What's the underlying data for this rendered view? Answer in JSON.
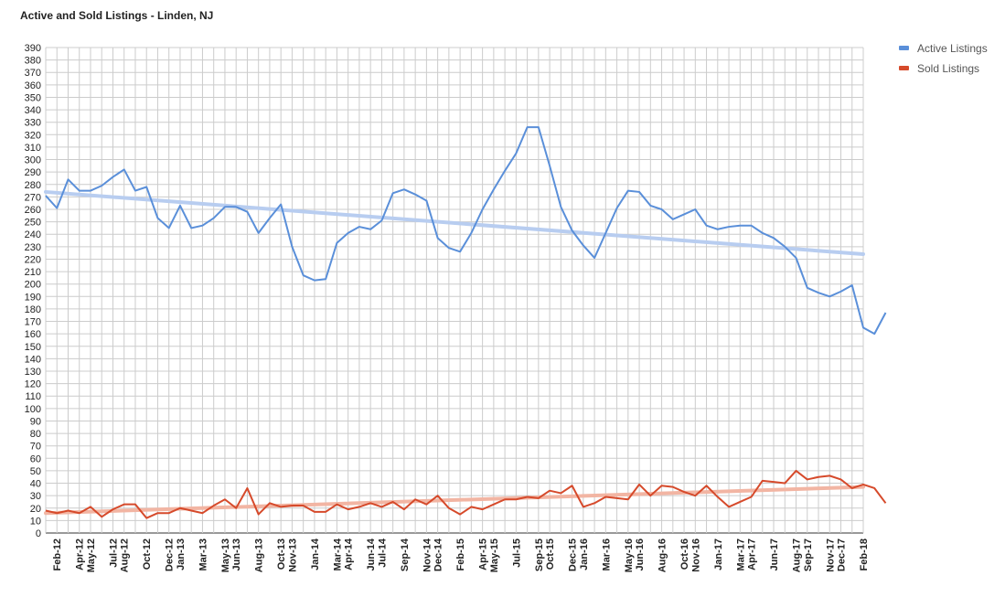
{
  "chart_data": {
    "type": "line",
    "title": "Active and Sold Listings - Linden, NJ",
    "xlabel": "",
    "ylabel": "",
    "ylim": [
      0,
      390
    ],
    "ytick_step": 10,
    "x_start": "Jan-12",
    "x_end": "Feb-18",
    "x_tick_labels": [
      "Feb-12",
      "Apr-12",
      "May-12",
      "Jul-12",
      "Aug-12",
      "Oct-12",
      "Dec-12",
      "Jan-13",
      "Mar-13",
      "May-13",
      "Jun-13",
      "Aug-13",
      "Oct-13",
      "Nov-13",
      "Jan-14",
      "Mar-14",
      "Apr-14",
      "Jun-14",
      "Jul-14",
      "Sep-14",
      "Nov-14",
      "Dec-14",
      "Feb-15",
      "Apr-15",
      "May-15",
      "Jul-15",
      "Sep-15",
      "Oct-15",
      "Dec-15",
      "Jan-16",
      "Mar-16",
      "May-16",
      "Jun-16",
      "Aug-16",
      "Oct-16",
      "Nov-16",
      "Jan-17",
      "Mar-17",
      "Apr-17",
      "Jun-17",
      "Aug-17",
      "Sep-17",
      "Nov-17",
      "Dec-17",
      "Feb-18"
    ],
    "grid": true,
    "legend_position": "right",
    "series": [
      {
        "name": "Active Listings",
        "color": "#5a8fd9",
        "trend_color": "#b8cdf0",
        "trendline": [
          274,
          224
        ],
        "values": [
          271,
          261,
          284,
          275,
          275,
          279,
          286,
          292,
          275,
          278,
          253,
          245,
          263,
          245,
          247,
          253,
          262,
          262,
          258,
          241,
          253,
          264,
          230,
          207,
          203,
          204,
          233,
          241,
          246,
          244,
          251,
          273,
          276,
          272,
          267,
          237,
          229,
          226,
          241,
          260,
          276,
          291,
          305,
          326,
          326,
          295,
          262,
          243,
          231,
          221,
          241,
          261,
          275,
          274,
          263,
          260,
          252,
          256,
          260,
          247,
          244,
          246,
          247,
          247,
          241,
          237,
          230,
          221,
          197,
          193,
          190,
          194,
          199,
          165,
          160,
          177
        ]
      },
      {
        "name": "Sold Listings",
        "color": "#d64a2b",
        "trend_color": "#f2b5a3",
        "trendline": [
          16,
          37
        ],
        "values": [
          18,
          16,
          18,
          16,
          21,
          13,
          19,
          23,
          23,
          12,
          16,
          16,
          20,
          18,
          16,
          22,
          27,
          20,
          36,
          15,
          24,
          21,
          22,
          22,
          17,
          17,
          23,
          19,
          21,
          24,
          21,
          25,
          19,
          27,
          23,
          30,
          20,
          15,
          21,
          19,
          23,
          27,
          27,
          29,
          28,
          34,
          32,
          38,
          21,
          24,
          29,
          28,
          27,
          39,
          30,
          38,
          37,
          33,
          30,
          38,
          29,
          21,
          25,
          29,
          42,
          41,
          40,
          50,
          43,
          45,
          46,
          43,
          36,
          39,
          36,
          24
        ]
      }
    ]
  }
}
